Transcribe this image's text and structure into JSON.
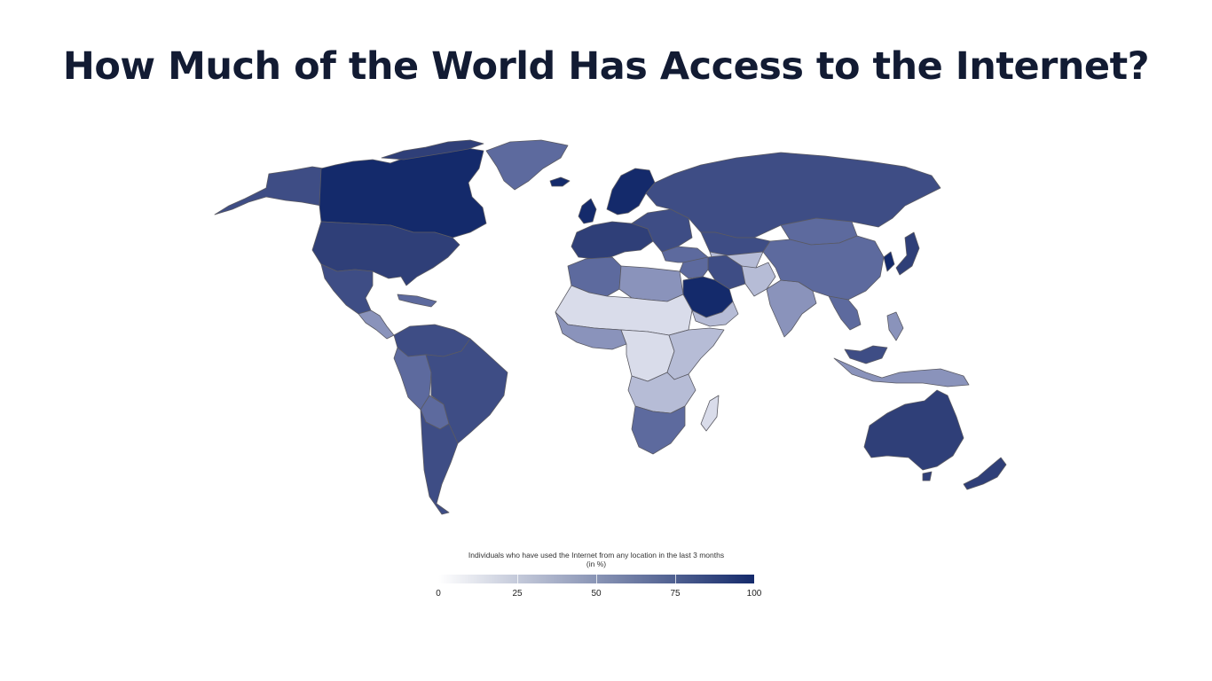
{
  "title": "How Much of the World Has Access to the Internet?",
  "legend": {
    "title_line1": "Individuals who have used the Internet from any location in the last 3 months",
    "title_line2": "(in %)",
    "ticks": [
      "0",
      "25",
      "50",
      "75",
      "100"
    ],
    "range": [
      0,
      100
    ],
    "color_low": "#ffffff",
    "color_high": "#142a6b"
  },
  "colors": {
    "very_high": "#142a6b",
    "high": "#2f3f78",
    "upper_mid": "#3e4d85",
    "mid": "#5d6a9e",
    "lower_mid": "#8a93bb",
    "low": "#b6bcd6",
    "very_low": "#d9dcea",
    "border": "#5a5a63",
    "title": "#121b33"
  }
}
